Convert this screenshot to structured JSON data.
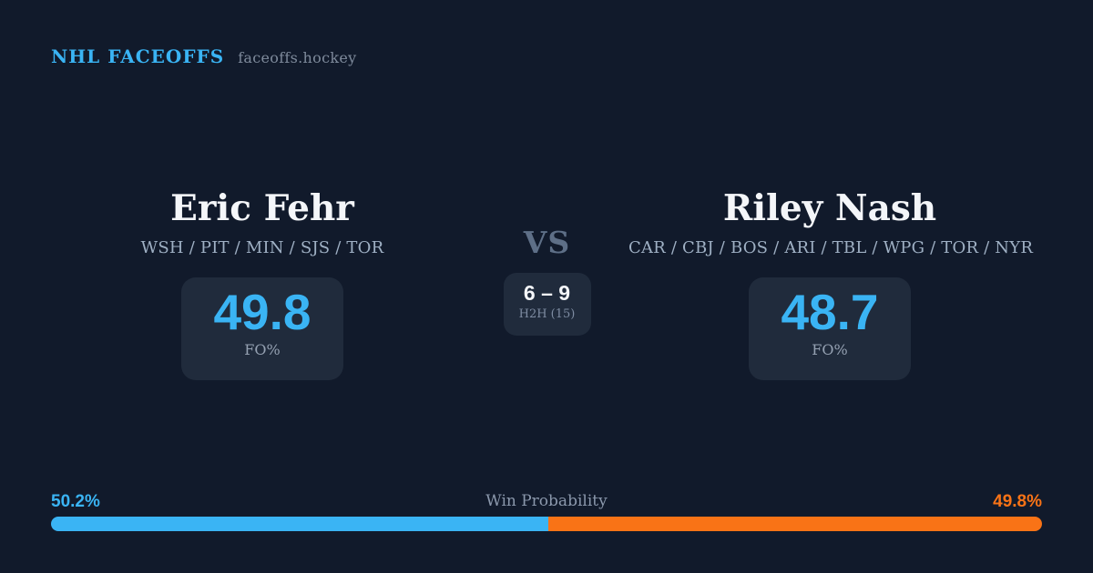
{
  "header": {
    "brand": "NHL FACEOFFS",
    "domain": "faceoffs.hockey"
  },
  "matchup": {
    "vs_label": "VS",
    "h2h": {
      "score": "6 – 9",
      "label": "H2H (15)"
    },
    "players": [
      {
        "name": "Eric Fehr",
        "teams": "WSH / PIT / MIN / SJS / TOR",
        "fo_pct": "49.8",
        "fo_label": "FO%"
      },
      {
        "name": "Riley Nash",
        "teams": "CAR / CBJ / BOS / ARI / TBL / WPG / TOR / NYR",
        "fo_pct": "48.7",
        "fo_label": "FO%"
      }
    ]
  },
  "win_probability": {
    "label": "Win Probability",
    "left_pct_label": "50.2%",
    "right_pct_label": "49.8%",
    "left_value": 50.2,
    "right_value": 49.8
  },
  "colors": {
    "background": "#111a2b",
    "panel": "#202b3c",
    "accent_blue": "#3ab4f4",
    "accent_orange": "#f97316",
    "text_white": "#f4f6f9",
    "text_teams": "#9fb0c4",
    "text_muted": "#8b98ac"
  }
}
